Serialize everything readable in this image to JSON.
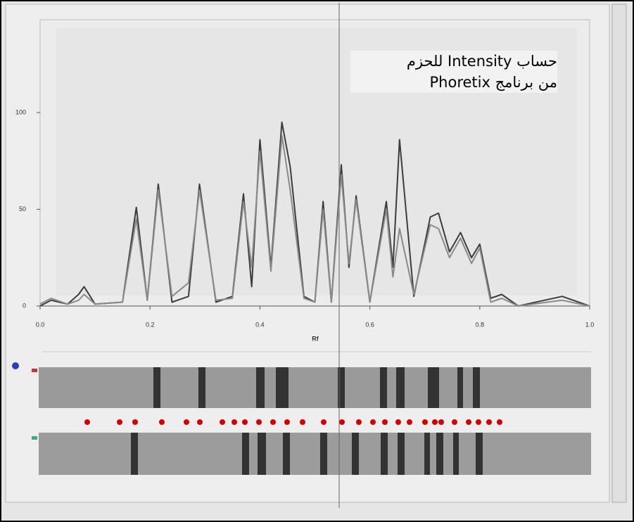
{
  "chart_data": {
    "type": "line",
    "x_label": "Rf",
    "annotations": [
      "حساب Intensity  للحزم",
      "من برنامج Phoretix"
    ],
    "x": [
      0,
      0.02,
      0.05,
      0.07,
      0.08,
      0.1,
      0.15,
      0.175,
      0.195,
      0.215,
      0.24,
      0.27,
      0.29,
      0.32,
      0.35,
      0.37,
      0.385,
      0.4,
      0.42,
      0.44,
      0.455,
      0.48,
      0.5,
      0.515,
      0.53,
      0.548,
      0.562,
      0.575,
      0.6,
      0.63,
      0.642,
      0.654,
      0.68,
      0.71,
      0.725,
      0.745,
      0.765,
      0.785,
      0.8,
      0.82,
      0.84,
      0.87,
      0.95,
      1.0
    ],
    "series": [
      {
        "color": "#3c3c3c",
        "values": [
          0,
          3,
          1,
          6,
          10,
          1,
          2,
          51,
          3,
          63,
          2,
          5,
          63,
          2,
          5,
          58,
          10,
          86,
          20,
          95,
          72,
          5,
          2,
          54,
          2,
          73,
          20,
          57,
          2,
          54,
          20,
          86,
          5,
          46,
          48,
          28,
          38,
          25,
          32,
          4,
          6,
          0,
          5,
          0
        ]
      },
      {
        "color": "#8a8a8a",
        "values": [
          1,
          4,
          1,
          3,
          6,
          1,
          2,
          45,
          3,
          60,
          5,
          12,
          60,
          3,
          4,
          54,
          20,
          80,
          18,
          88,
          60,
          4,
          2,
          50,
          2,
          68,
          22,
          55,
          2,
          50,
          15,
          40,
          6,
          42,
          40,
          25,
          35,
          22,
          30,
          2,
          4,
          0,
          3,
          0
        ]
      }
    ],
    "xlim": [
      0,
      1.0
    ],
    "xticks": [
      {
        "value": 0,
        "label": "0.0"
      },
      {
        "value": 0.2,
        "label": "0.2"
      },
      {
        "value": 0.4,
        "label": "0.4"
      },
      {
        "value": 0.6,
        "label": "0.6"
      },
      {
        "value": 0.8,
        "label": "0.8"
      },
      {
        "value": 1.0,
        "label": "1.0"
      }
    ],
    "ylim": [
      0,
      148
    ],
    "yticks": [
      0,
      50,
      100
    ],
    "grid": false
  }
}
